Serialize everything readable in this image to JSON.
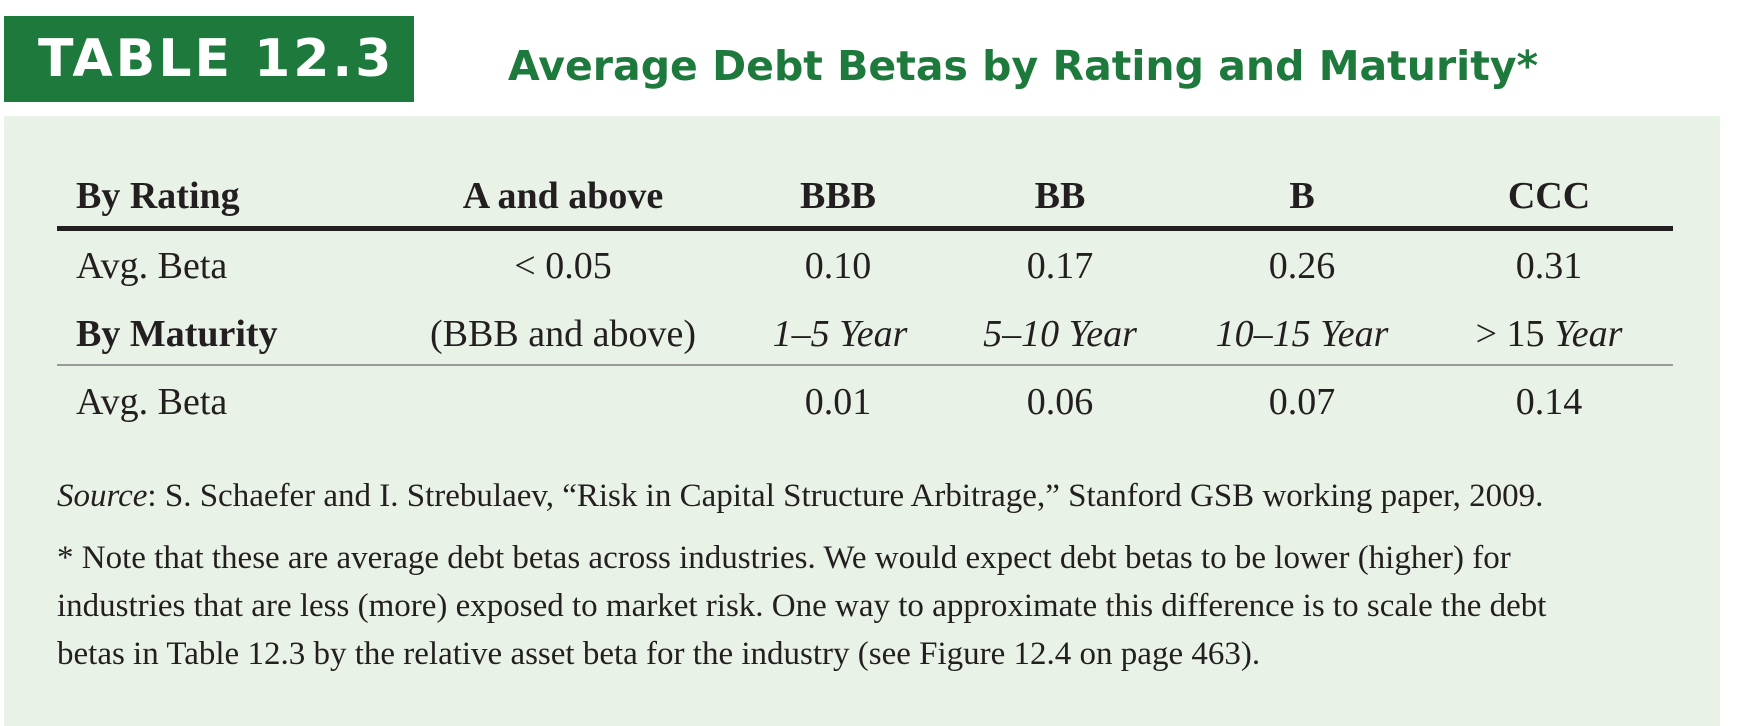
{
  "header": {
    "badge": "TABLE 12.3",
    "title": "Average Debt Betas by Rating and Maturity*"
  },
  "table": {
    "rating_header": [
      "By Rating",
      "A and above",
      "BBB",
      "BB",
      "B",
      "CCC"
    ],
    "rating_values": [
      "Avg. Beta",
      "< 0.05",
      "0.10",
      "0.17",
      "0.26",
      "0.31"
    ],
    "maturity_header": {
      "label": "By Maturity",
      "note": "(BBB and above)",
      "m1": "1–5 Year",
      "m2": "5–10 Year",
      "m3": "10–15 Year",
      "m4_prefix": "> 15",
      "m4_suffix": "Year"
    },
    "maturity_values": [
      "Avg. Beta",
      "",
      "0.01",
      "0.06",
      "0.07",
      "0.14"
    ]
  },
  "source": {
    "label": "Source",
    "text": ": S. Schaefer and I. Strebulaev, “Risk in Capital Structure Arbitrage,” Stanford GSB working paper, 2009."
  },
  "note": {
    "line1": "* Note that these are average debt betas across industries. We would expect debt betas to be lower (higher) for",
    "line2": "industries that are less (more) exposed to market risk. One way to approximate this difference is to scale the debt",
    "line3": "betas in Table 12.3 by the relative asset beta for the industry (see Figure 12.4 on page 463)."
  }
}
